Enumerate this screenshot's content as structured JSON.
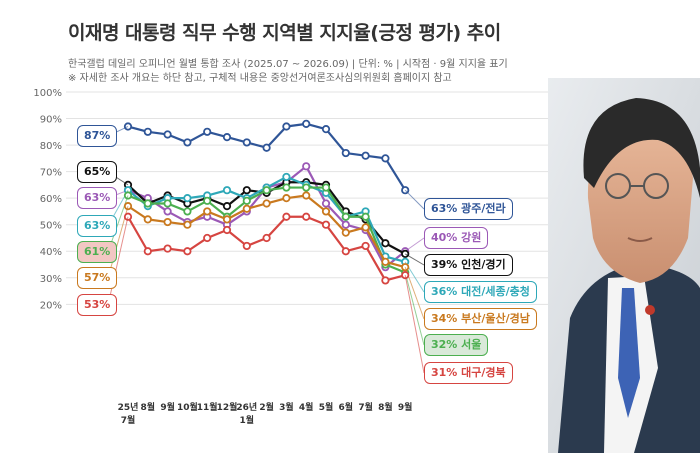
{
  "title": "이재명 대통령 직무 수행 지역별 지지율(긍정 평가) 추이",
  "subtitle": "한국갤럽 데일리 오피니언 월별 통합 조사 (2025.07 ~ 2026.09) | 단위: % | 시작점 · 9월 지지율 표기",
  "note": "※ 자세한 조사 개요는 하단 참고, 구체적 내용은 중앙선거여론조사심의위원회 홈페이지 참고",
  "chart_data": {
    "type": "line",
    "title": "이재명 대통령 직무 수행 지역별 지지율(긍정 평가) 추이",
    "x_labels": [
      [
        "25년",
        "7월"
      ],
      [
        "8월"
      ],
      [
        "9월"
      ],
      [
        "10월"
      ],
      [
        "11월"
      ],
      [
        "12월"
      ],
      [
        "26년",
        "1월"
      ],
      [
        "2월"
      ],
      [
        "3월"
      ],
      [
        "4월"
      ],
      [
        "5월"
      ],
      [
        "6월"
      ],
      [
        "7월"
      ],
      [
        "8월"
      ],
      [
        "9월"
      ]
    ],
    "yticks": [
      "100%",
      "90%",
      "80%",
      "70%",
      "60%",
      "50%",
      "40%",
      "30%",
      "20%"
    ],
    "ylim": [
      10,
      100
    ],
    "grid": true,
    "series": [
      {
        "name": "광주/전라",
        "color": "#2f5597",
        "start_label": "87%",
        "end_label": "63% 광주/전라",
        "values": [
          87,
          85,
          84,
          81,
          85,
          83,
          81,
          79,
          87,
          88,
          86,
          77,
          76,
          75,
          63
        ]
      },
      {
        "name": "강원",
        "color": "#9b59b6",
        "start_label": "63%",
        "end_label": "40% 강원",
        "values": [
          63,
          60,
          55,
          51,
          53,
          50,
          55,
          64,
          66,
          72,
          58,
          50,
          48,
          34,
          40
        ]
      },
      {
        "name": "인천/경기",
        "color": "#111111",
        "start_label": "65%",
        "end_label": "39% 인천/경기",
        "values": [
          65,
          58,
          61,
          58,
          60,
          57,
          63,
          62,
          66,
          66,
          65,
          55,
          52,
          43,
          39
        ]
      },
      {
        "name": "대전/세종/충청",
        "color": "#2ea8b8",
        "start_label": "63%",
        "end_label": "36% 대전/세종/충청",
        "values": [
          63,
          57,
          60,
          60,
          61,
          63,
          60,
          64,
          68,
          65,
          62,
          53,
          55,
          38,
          36
        ]
      },
      {
        "name": "서울",
        "color": "#4caf50",
        "start_label": "61%",
        "end_label": "32% 서울",
        "values": [
          61,
          58,
          58,
          55,
          59,
          53,
          59,
          63,
          64,
          64,
          64,
          53,
          53,
          35,
          32
        ]
      },
      {
        "name": "부산/울산/경남",
        "color": "#c9791f",
        "start_label": "57%",
        "end_label": "34% 부산/울산/경남",
        "values": [
          57,
          52,
          51,
          50,
          55,
          52,
          56,
          58,
          60,
          61,
          55,
          47,
          49,
          36,
          34
        ]
      },
      {
        "name": "대구/경북",
        "color": "#d64541",
        "start_label": "53%",
        "end_label": "31% 대구/경북",
        "values": [
          53,
          40,
          41,
          40,
          45,
          48,
          42,
          45,
          53,
          53,
          50,
          40,
          42,
          29,
          31
        ]
      }
    ]
  },
  "photo": {
    "icon": "person-photo"
  }
}
